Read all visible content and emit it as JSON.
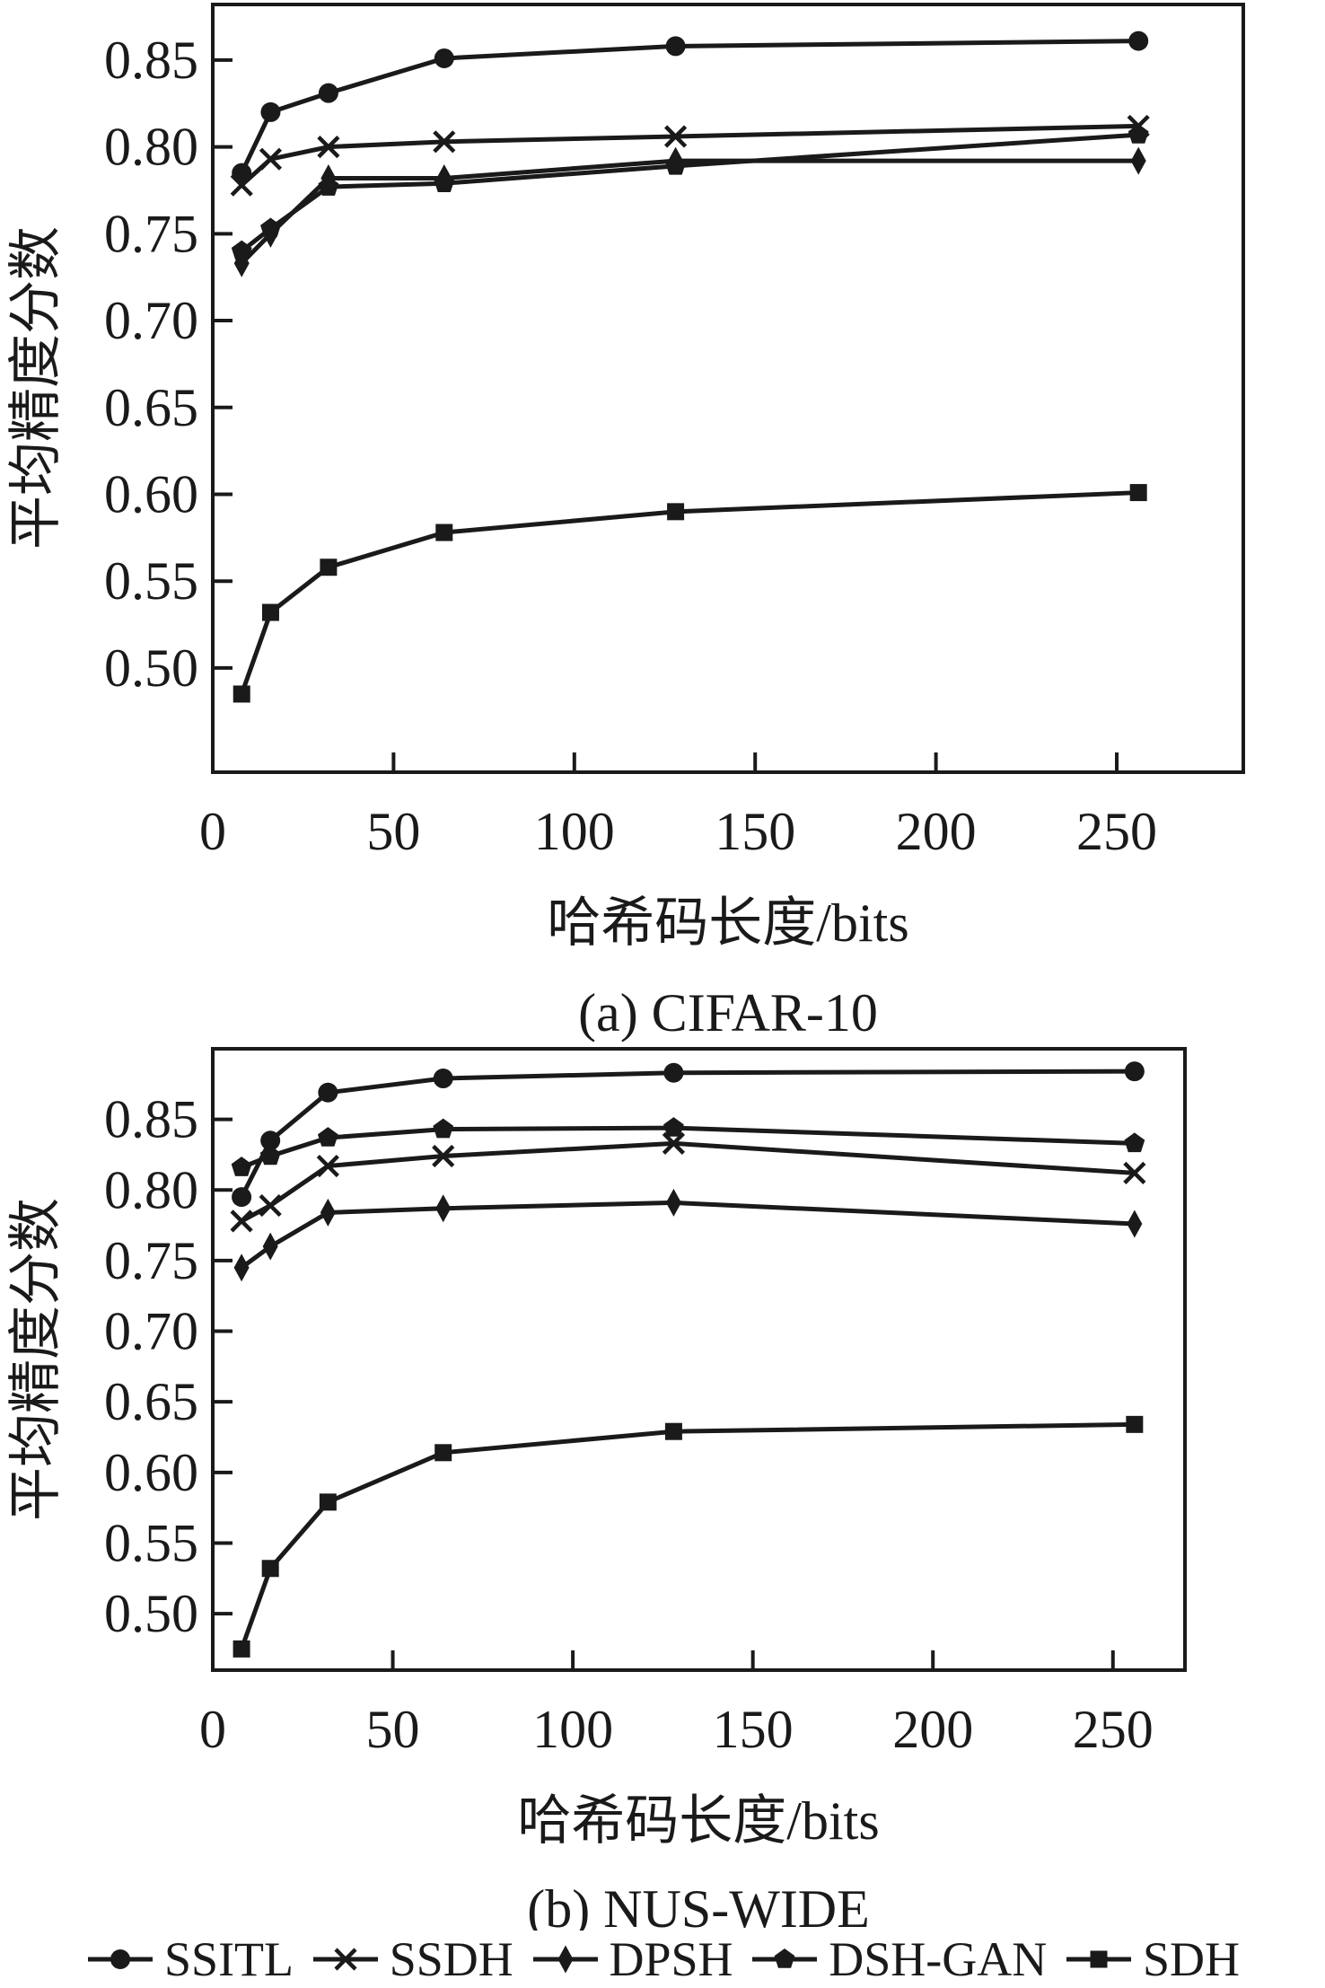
{
  "page": {
    "background": "#ffffff",
    "line_color": "#1a1a1a"
  },
  "legend": {
    "items": [
      {
        "label": "SSITL",
        "marker": "circle"
      },
      {
        "label": "SSDH",
        "marker": "x"
      },
      {
        "label": "DPSH",
        "marker": "diamond"
      },
      {
        "label": "DSH-GAN",
        "marker": "pentagon"
      },
      {
        "label": "SDH",
        "marker": "square"
      }
    ]
  },
  "chart_data": [
    {
      "type": "line",
      "id": "cifar10",
      "caption": "(a) CIFAR-10",
      "xlabel": "哈希码长度/bits",
      "ylabel": "平均精度分数",
      "x": [
        8,
        16,
        32,
        64,
        128,
        256
      ],
      "xticks": [
        0,
        50,
        100,
        150,
        200,
        250
      ],
      "yticks": [
        0.5,
        0.55,
        0.6,
        0.65,
        0.7,
        0.75,
        0.8,
        0.85
      ],
      "xlim": [
        0,
        285
      ],
      "ylim": [
        0.44,
        0.882
      ],
      "grid": false,
      "series": [
        {
          "name": "SSITL",
          "marker": "circle",
          "values": [
            0.785,
            0.82,
            0.831,
            0.851,
            0.858,
            0.861
          ]
        },
        {
          "name": "SSDH",
          "marker": "x",
          "values": [
            0.778,
            0.793,
            0.8,
            0.803,
            0.806,
            0.812
          ]
        },
        {
          "name": "DPSH",
          "marker": "diamond",
          "values": [
            0.733,
            0.75,
            0.782,
            0.782,
            0.792,
            0.792
          ]
        },
        {
          "name": "DSH-GAN",
          "marker": "pentagon",
          "values": [
            0.74,
            0.753,
            0.777,
            0.779,
            0.789,
            0.807
          ]
        },
        {
          "name": "SDH",
          "marker": "square",
          "values": [
            0.485,
            0.532,
            0.558,
            0.578,
            0.59,
            0.601
          ]
        }
      ]
    },
    {
      "type": "line",
      "id": "nuswide",
      "caption": "(b) NUS-WIDE",
      "xlabel": "哈希码长度/bits",
      "ylabel": "平均精度分数",
      "x": [
        8,
        16,
        32,
        64,
        128,
        256
      ],
      "xticks": [
        0,
        50,
        100,
        150,
        200,
        250
      ],
      "yticks": [
        0.5,
        0.55,
        0.6,
        0.65,
        0.7,
        0.75,
        0.8,
        0.85
      ],
      "xlim": [
        0,
        270
      ],
      "ylim": [
        0.46,
        0.9
      ],
      "grid": false,
      "series": [
        {
          "name": "SSITL",
          "marker": "circle",
          "values": [
            0.795,
            0.835,
            0.869,
            0.879,
            0.883,
            0.884
          ]
        },
        {
          "name": "SSDH",
          "marker": "x",
          "values": [
            0.778,
            0.789,
            0.817,
            0.824,
            0.833,
            0.812
          ]
        },
        {
          "name": "DPSH",
          "marker": "diamond",
          "values": [
            0.745,
            0.76,
            0.784,
            0.787,
            0.791,
            0.776
          ]
        },
        {
          "name": "DSH-GAN",
          "marker": "pentagon",
          "values": [
            0.816,
            0.824,
            0.837,
            0.843,
            0.844,
            0.833
          ]
        },
        {
          "name": "SDH",
          "marker": "square",
          "values": [
            0.475,
            0.532,
            0.579,
            0.614,
            0.629,
            0.634
          ]
        }
      ]
    }
  ]
}
